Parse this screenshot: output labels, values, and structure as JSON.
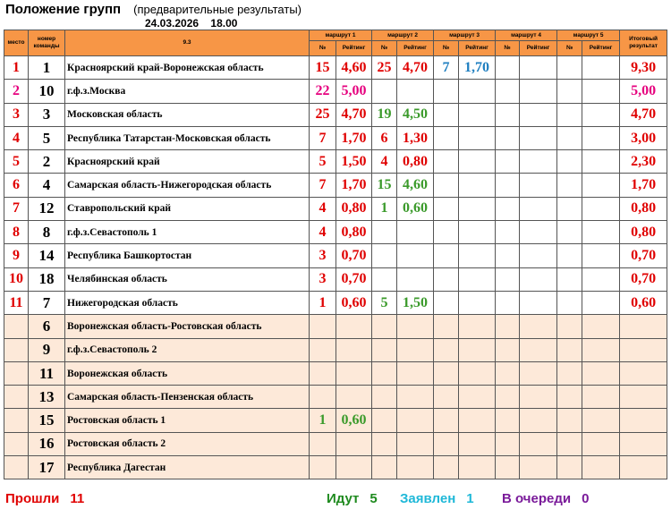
{
  "header": {
    "title": "Положение групп",
    "subtitle": "(предварительные результаты)",
    "datetime": "24.03.2026    18.00"
  },
  "table": {
    "columns": {
      "place": "место",
      "team": "номер команды",
      "name": "9.3",
      "routes": [
        "маршрут 1",
        "маршрут 2",
        "маршрут 3",
        "маршрут 4",
        "маршрут 5"
      ],
      "no": "№",
      "rating": "Рейтинг",
      "total": "Итоговый результат"
    },
    "rows": [
      {
        "place": "1",
        "team": "1",
        "name": "Красноярский край-Воронежская область",
        "routes": [
          {
            "no": "15",
            "rating": "4,60",
            "color": "#e00000"
          },
          {
            "no": "25",
            "rating": "4,70",
            "color": "#e00000"
          },
          {
            "no": "7",
            "rating": "1,70",
            "color": "#1f7fc0"
          },
          null,
          null
        ],
        "total": "9,30",
        "color": "#e00000"
      },
      {
        "place": "2",
        "team": "10",
        "name": "г.ф.з.Москва",
        "routes": [
          {
            "no": "22",
            "rating": "5,00",
            "color": "#e6007e"
          },
          null,
          null,
          null,
          null
        ],
        "total": "5,00",
        "color": "#e6007e"
      },
      {
        "place": "3",
        "team": "3",
        "name": "Московская область",
        "routes": [
          {
            "no": "25",
            "rating": "4,70",
            "color": "#e00000"
          },
          {
            "no": "19",
            "rating": "4,50",
            "color": "#3a9a2a"
          },
          null,
          null,
          null
        ],
        "total": "4,70",
        "color": "#e00000"
      },
      {
        "place": "4",
        "team": "5",
        "name": "Республика Татарстан-Московская область",
        "routes": [
          {
            "no": "7",
            "rating": "1,70",
            "color": "#e00000"
          },
          {
            "no": "6",
            "rating": "1,30",
            "color": "#e00000"
          },
          null,
          null,
          null
        ],
        "total": "3,00",
        "color": "#e00000"
      },
      {
        "place": "5",
        "team": "2",
        "name": "Красноярский край",
        "routes": [
          {
            "no": "5",
            "rating": "1,50",
            "color": "#e00000"
          },
          {
            "no": "4",
            "rating": "0,80",
            "color": "#e00000"
          },
          null,
          null,
          null
        ],
        "total": "2,30",
        "color": "#e00000"
      },
      {
        "place": "6",
        "team": "4",
        "name": "Самарская область-Нижегородская область",
        "routes": [
          {
            "no": "7",
            "rating": "1,70",
            "color": "#e00000"
          },
          {
            "no": "15",
            "rating": "4,60",
            "color": "#3a9a2a"
          },
          null,
          null,
          null
        ],
        "total": "1,70",
        "color": "#e00000"
      },
      {
        "place": "7",
        "team": "12",
        "name": "Ставропольский край",
        "routes": [
          {
            "no": "4",
            "rating": "0,80",
            "color": "#e00000"
          },
          {
            "no": "1",
            "rating": "0,60",
            "color": "#3a9a2a"
          },
          null,
          null,
          null
        ],
        "total": "0,80",
        "color": "#e00000"
      },
      {
        "place": "8",
        "team": "8",
        "name": "г.ф.з.Севастополь 1",
        "routes": [
          {
            "no": "4",
            "rating": "0,80",
            "color": "#e00000"
          },
          null,
          null,
          null,
          null
        ],
        "total": "0,80",
        "color": "#e00000"
      },
      {
        "place": "9",
        "team": "14",
        "name": "Республика Башкортостан",
        "routes": [
          {
            "no": "3",
            "rating": "0,70",
            "color": "#e00000"
          },
          null,
          null,
          null,
          null
        ],
        "total": "0,70",
        "color": "#e00000"
      },
      {
        "place": "10",
        "team": "18",
        "name": "Челябинская область",
        "routes": [
          {
            "no": "3",
            "rating": "0,70",
            "color": "#e00000"
          },
          null,
          null,
          null,
          null
        ],
        "total": "0,70",
        "color": "#e00000"
      },
      {
        "place": "11",
        "team": "7",
        "name": "Нижегородская область",
        "routes": [
          {
            "no": "1",
            "rating": "0,60",
            "color": "#e00000"
          },
          {
            "no": "5",
            "rating": "1,50",
            "color": "#3a9a2a"
          },
          null,
          null,
          null
        ],
        "total": "0,60",
        "color": "#e00000"
      },
      {
        "team": "6",
        "name": "Воронежская область-Ростовская область",
        "routes": [
          null,
          null,
          null,
          null,
          null
        ]
      },
      {
        "team": "9",
        "name": "г.ф.з.Севастополь 2",
        "routes": [
          null,
          null,
          null,
          null,
          null
        ]
      },
      {
        "team": "11",
        "name": "Воронежская область",
        "routes": [
          null,
          null,
          null,
          null,
          null
        ]
      },
      {
        "team": "13",
        "name": "Самарская область-Пензенская область",
        "routes": [
          null,
          null,
          null,
          null,
          null
        ]
      },
      {
        "team": "15",
        "name": "Ростовская область 1",
        "routes": [
          {
            "no": "1",
            "rating": "0,60",
            "color": "#3a9a2a"
          },
          null,
          null,
          null,
          null
        ]
      },
      {
        "team": "16",
        "name": "Ростовская область 2",
        "routes": [
          null,
          null,
          null,
          null,
          null
        ]
      },
      {
        "team": "17",
        "name": "Республика Дагестан",
        "routes": [
          null,
          null,
          null,
          null,
          null
        ]
      }
    ]
  },
  "footer": [
    {
      "label": "Прошли",
      "value": "11",
      "color": "#e00000"
    },
    {
      "label": "Идут",
      "value": "5",
      "color": "#1e8a1e"
    },
    {
      "label": "Заявлен",
      "value": "1",
      "color": "#1fb8d8"
    },
    {
      "label": "В очереди",
      "value": "0",
      "color": "#7a1a9a"
    }
  ]
}
